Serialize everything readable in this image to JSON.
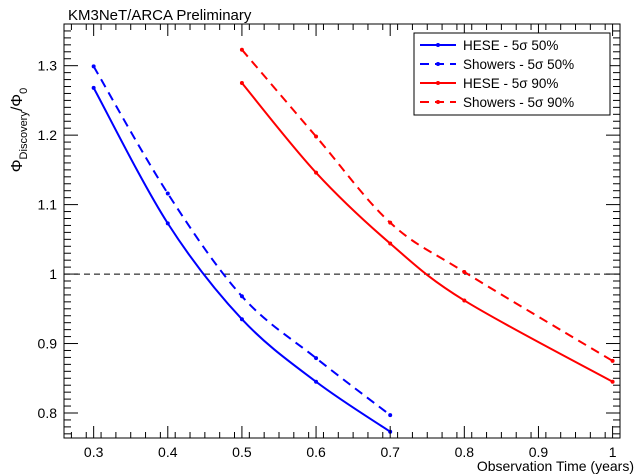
{
  "chart_data": {
    "type": "line",
    "title": "KM3NeT/ARCA Preliminary",
    "xlabel": "Observation Time (years)",
    "ylabel": {
      "main": "Φ",
      "sub1": "Discovery",
      "mid": "/Φ",
      "sub2": "0"
    },
    "xlim": [
      0.26,
      1.01
    ],
    "ylim": [
      0.764,
      1.36
    ],
    "x_ticks": [
      0.3,
      0.4,
      0.5,
      0.6,
      0.7,
      0.8,
      0.9,
      1.0
    ],
    "x_tick_labels": [
      "0.3",
      "0.4",
      "0.5",
      "0.6",
      "0.7",
      "0.8",
      "0.9",
      "1"
    ],
    "y_ticks": [
      0.8,
      0.9,
      1.0,
      1.1,
      1.2,
      1.3
    ],
    "y_tick_labels": [
      "0.8",
      "0.9",
      "1",
      "1.1",
      "1.2",
      "1.3"
    ],
    "reference_line": {
      "y": 1.0,
      "style": "dashed",
      "color": "#000000"
    },
    "legend_position": "top-right",
    "series": [
      {
        "name": "HESE - 5σ 50%",
        "color": "#0000ff",
        "dash": false,
        "x": [
          0.3,
          0.4,
          0.5,
          0.6,
          0.7
        ],
        "y": [
          1.268,
          1.073,
          0.935,
          0.845,
          0.773
        ]
      },
      {
        "name": "Showers - 5σ 50%",
        "color": "#0000ff",
        "dash": true,
        "x": [
          0.3,
          0.4,
          0.5,
          0.6,
          0.7
        ],
        "y": [
          1.299,
          1.116,
          0.968,
          0.879,
          0.797
        ]
      },
      {
        "name": "HESE - 5σ 90%",
        "color": "#ff0000",
        "dash": false,
        "x": [
          0.5,
          0.6,
          0.7,
          0.8,
          1.0
        ],
        "y": [
          1.275,
          1.146,
          1.044,
          0.962,
          0.845
        ]
      },
      {
        "name": "Showers - 5σ 90%",
        "color": "#ff0000",
        "dash": true,
        "x": [
          0.5,
          0.6,
          0.7,
          0.8,
          1.0
        ],
        "y": [
          1.323,
          1.198,
          1.074,
          1.003,
          0.875
        ]
      }
    ]
  }
}
